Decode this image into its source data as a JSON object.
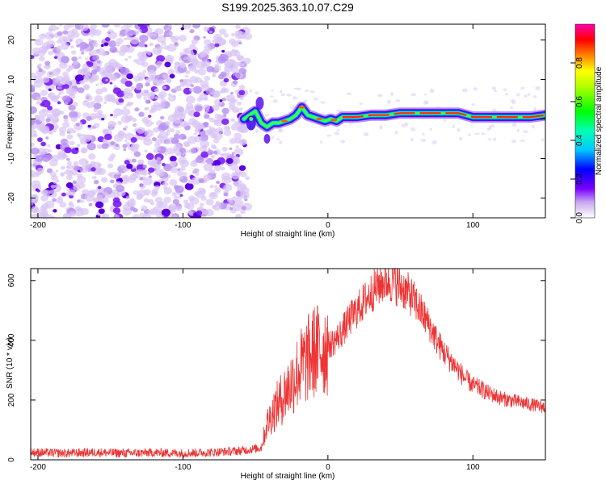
{
  "chart_data": [
    {
      "type": "heatmap",
      "title": "S199.2025.363.10.07.C29",
      "xlabel": "Height of straight line (km)",
      "ylabel": "Frequency (Hz)",
      "xlim": [
        -205,
        150
      ],
      "ylim": [
        -25,
        24
      ],
      "xticks": [
        -200,
        -100,
        0,
        100
      ],
      "yticks": [
        -20,
        -10,
        0,
        10,
        20
      ],
      "colorbar": {
        "label": "Normalized spectral amplitude",
        "range": [
          0,
          1
        ],
        "ticks": [
          0.0,
          0.2,
          0.4,
          0.6,
          0.8
        ]
      },
      "ridge": {
        "x": [
          -58,
          -54,
          -50,
          -46,
          -42,
          -38,
          -34,
          -30,
          -26,
          -22,
          -18,
          -14,
          -10,
          -6,
          -2,
          2,
          6,
          10,
          20,
          30,
          40,
          50,
          60,
          70,
          80,
          90,
          100,
          110,
          120,
          130,
          140,
          150
        ],
        "freq": [
          0,
          1,
          2,
          -1,
          -2,
          -1,
          -1,
          -0.5,
          0,
          1,
          3,
          1,
          0.5,
          0,
          -0.5,
          0,
          -0.5,
          0.5,
          0.5,
          1,
          1,
          1.5,
          1.5,
          1.5,
          1.5,
          1.5,
          0.5,
          0.5,
          0.5,
          0.5,
          0.5,
          1
        ]
      }
    },
    {
      "type": "line",
      "title": "",
      "xlabel": "Height of straight line (km)",
      "ylabel": "SNR (10 * v/v)",
      "xlim": [
        -205,
        150
      ],
      "ylim": [
        0,
        640
      ],
      "xticks": [
        -200,
        -100,
        0,
        100
      ],
      "yticks": [
        0,
        200,
        400,
        600
      ],
      "series": [
        {
          "name": "SNR",
          "color": "#ee3333",
          "x": [
            -205,
            -180,
            -160,
            -140,
            -120,
            -100,
            -80,
            -60,
            -46,
            -42,
            -38,
            -34,
            -30,
            -25,
            -20,
            -15,
            -10,
            -5,
            0,
            5,
            10,
            15,
            20,
            25,
            30,
            35,
            40,
            45,
            50,
            55,
            60,
            65,
            70,
            75,
            80,
            85,
            90,
            95,
            100,
            105,
            110,
            115,
            120,
            125,
            130,
            135,
            140,
            145,
            150
          ],
          "values": [
            25,
            22,
            25,
            22,
            24,
            22,
            25,
            30,
            40,
            120,
            160,
            190,
            220,
            260,
            300,
            330,
            360,
            370,
            380,
            400,
            430,
            470,
            500,
            530,
            560,
            585,
            600,
            595,
            580,
            560,
            530,
            490,
            450,
            400,
            360,
            330,
            300,
            270,
            250,
            240,
            225,
            215,
            205,
            200,
            195,
            190,
            185,
            180,
            175
          ]
        }
      ]
    }
  ]
}
